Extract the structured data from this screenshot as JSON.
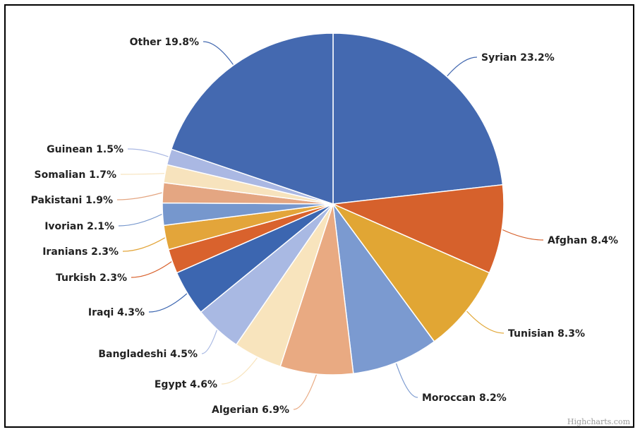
{
  "chart_data": {
    "type": "pie",
    "title": "",
    "slices": [
      {
        "name": "Syrian",
        "label": "Syrian 23.2%",
        "value": 23.2,
        "color": "#4469b0"
      },
      {
        "name": "Afghan",
        "label": "Afghan 8.4%",
        "value": 8.4,
        "color": "#d6612c"
      },
      {
        "name": "Tunisian",
        "label": "Tunisian 8.3%",
        "value": 8.3,
        "color": "#e1a634"
      },
      {
        "name": "Moroccan",
        "label": "Moroccan 8.2%",
        "value": 8.2,
        "color": "#7b9ad0"
      },
      {
        "name": "Algerian",
        "label": "Algerian 6.9%",
        "value": 6.9,
        "color": "#e9aa82"
      },
      {
        "name": "Egypt",
        "label": "Egypt 4.6%",
        "value": 4.6,
        "color": "#f8e4bd"
      },
      {
        "name": "Bangladeshi",
        "label": "Bangladeshi 4.5%",
        "value": 4.5,
        "color": "#a9b9e3"
      },
      {
        "name": "Iraqi",
        "label": "Iraqi 4.3%",
        "value": 4.3,
        "color": "#3c66b0"
      },
      {
        "name": "Turkish",
        "label": "Turkish 2.3%",
        "value": 2.3,
        "color": "#d9622d"
      },
      {
        "name": "Iranians",
        "label": "Iranians 2.3%",
        "value": 2.3,
        "color": "#e3a53a"
      },
      {
        "name": "Ivorian",
        "label": "Ivorian 2.1%",
        "value": 2.1,
        "color": "#7697cd"
      },
      {
        "name": "Pakistani",
        "label": "Pakistani 1.9%",
        "value": 1.9,
        "color": "#e4a682"
      },
      {
        "name": "Somalian",
        "label": "Somalian 1.7%",
        "value": 1.7,
        "color": "#f7e3bd"
      },
      {
        "name": "Guinean",
        "label": "Guinean 1.5%",
        "value": 1.5,
        "color": "#aab8e3"
      },
      {
        "name": "Other",
        "label": "Other 19.8%",
        "value": 19.8,
        "color": "#4469b0"
      }
    ]
  },
  "credit": "Highcharts.com"
}
